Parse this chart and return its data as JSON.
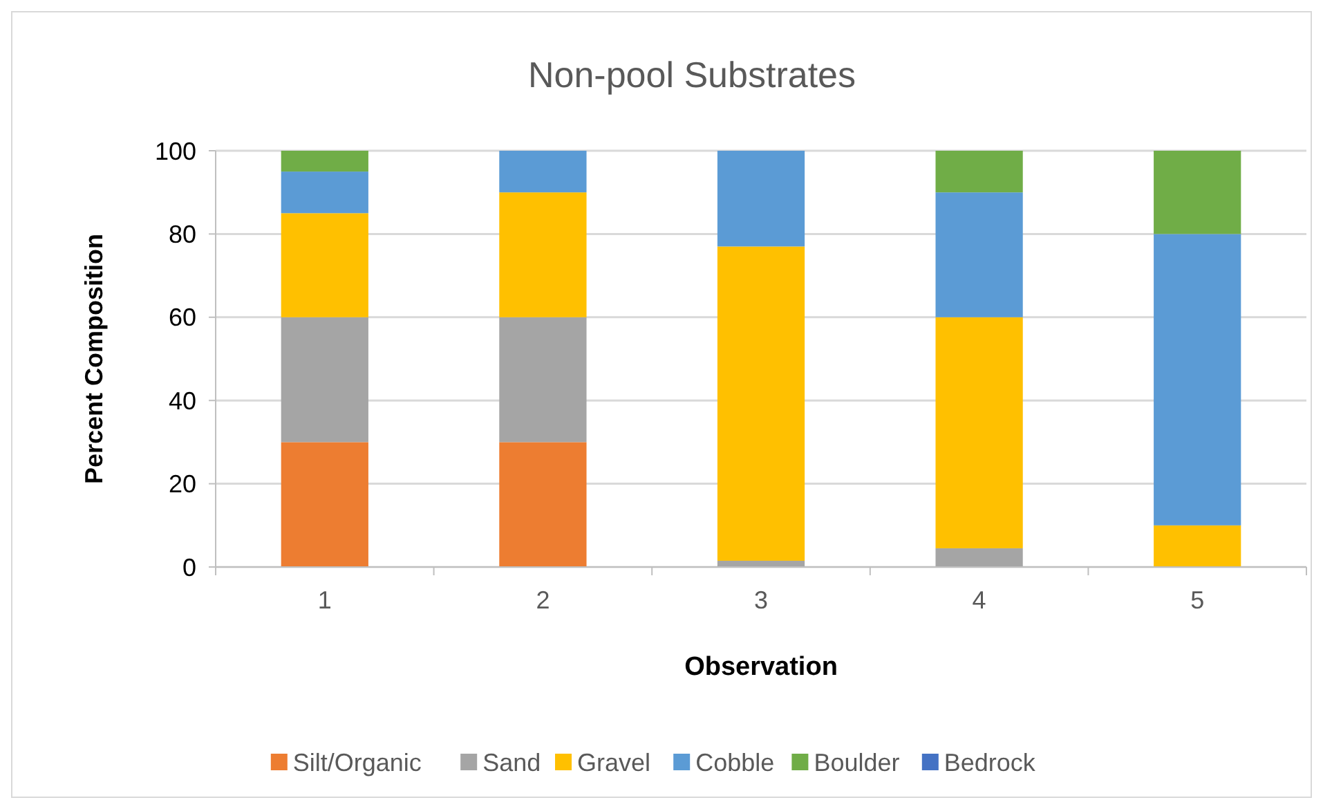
{
  "chart_data": {
    "type": "bar",
    "stacked": true,
    "title": "Non-pool Substrates",
    "xlabel": "Observation",
    "ylabel": "Percent Composition",
    "categories": [
      "1",
      "2",
      "3",
      "4",
      "5"
    ],
    "series": [
      {
        "name": "Silt/Organic",
        "color": "#ed7d31",
        "values": [
          30,
          30,
          0,
          0,
          0
        ]
      },
      {
        "name": "Sand",
        "color": "#a5a5a5",
        "values": [
          30,
          30,
          1.5,
          4.5,
          0
        ]
      },
      {
        "name": "Gravel",
        "color": "#ffc000",
        "values": [
          25,
          30,
          75.5,
          55.5,
          10
        ]
      },
      {
        "name": "Cobble",
        "color": "#5b9bd5",
        "values": [
          10,
          10,
          23,
          30,
          70
        ]
      },
      {
        "name": "Boulder",
        "color": "#70ad47",
        "values": [
          5,
          0,
          0,
          10,
          20
        ]
      },
      {
        "name": "Bedrock",
        "color": "#4472c4",
        "values": [
          0,
          0,
          0,
          0,
          0
        ]
      }
    ],
    "ylim": [
      0,
      100
    ],
    "yticks": [
      0,
      20,
      40,
      60,
      80,
      100
    ],
    "grid": "y",
    "legend": "bottom"
  }
}
